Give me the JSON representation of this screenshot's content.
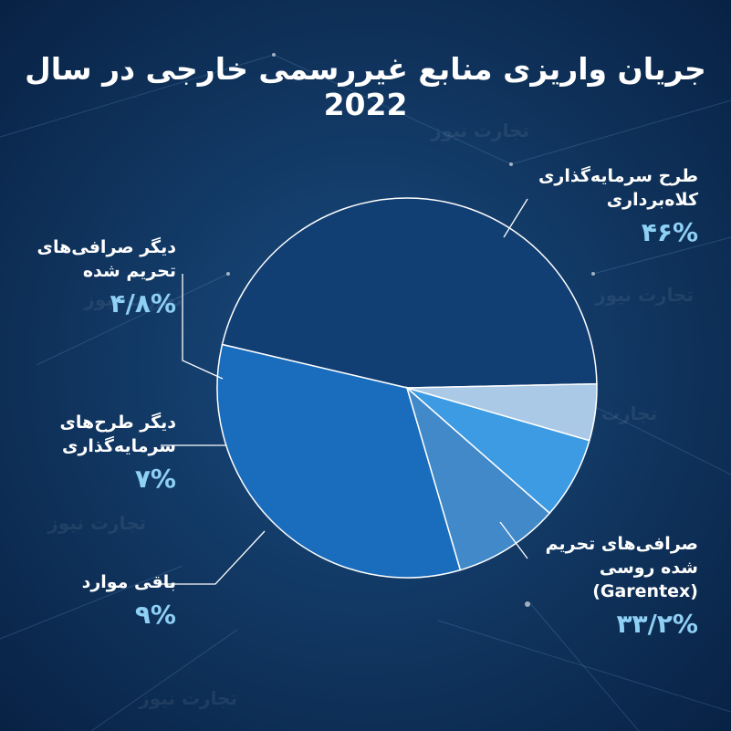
{
  "title": "جریان واریزی منابع غیررسمی خارجی در سال 2022",
  "chart_data": {
    "type": "pie",
    "slices": [
      {
        "label_lines": [
          "طرح سرمایه‌گذاری",
          "کلاه‌برداری"
        ],
        "value_label": "۴۶%",
        "value": 46,
        "color": "#123f73"
      },
      {
        "label_lines": [
          "صرافی‌های تحریم",
          "شده روسی",
          "(Garentex)"
        ],
        "value_label": "۳۳/۲%",
        "value": 33.2,
        "color": "#1a6dbd"
      },
      {
        "label_lines": [
          "باقی موارد"
        ],
        "value_label": "۹%",
        "value": 9,
        "color": "#4189c9"
      },
      {
        "label_lines": [
          "دیگر طرح‌های",
          "سرمایه‌گذاری"
        ],
        "value_label": "۷%",
        "value": 7,
        "color": "#3d9be3"
      },
      {
        "label_lines": [
          "دیگر صرافی‌های",
          "تحریم شده"
        ],
        "value_label": "۴/۸%",
        "value": 4.8,
        "color": "#a9c9e6"
      }
    ]
  },
  "watermark": "تجارت نیوز"
}
